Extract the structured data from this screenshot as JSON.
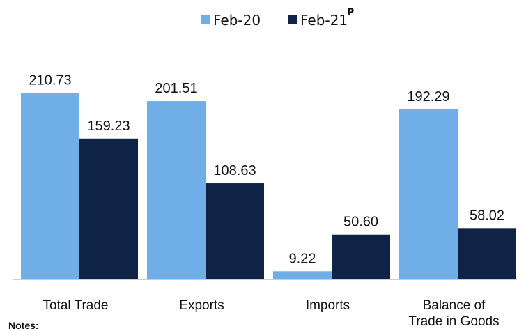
{
  "chart_data": {
    "type": "bar",
    "categories": [
      "Total Trade",
      "Exports",
      "Imports",
      "Balance of Trade in Goods"
    ],
    "category_lines": [
      [
        "Total Trade"
      ],
      [
        "Exports"
      ],
      [
        "Imports"
      ],
      [
        "Balance of",
        "Trade in Goods"
      ]
    ],
    "series": [
      {
        "name": "Feb-20",
        "values": [
          210.73,
          201.51,
          9.22,
          192.29
        ],
        "color": "#6faee6"
      },
      {
        "name": "Feb-21",
        "superscript": "P",
        "values": [
          159.23,
          108.63,
          50.6,
          58.02
        ],
        "color": "#0f2347"
      }
    ],
    "value_labels": [
      [
        "210.73",
        "201.51",
        "9.22",
        "192.29"
      ],
      [
        "159.23",
        "108.63",
        "50.60",
        "58.02"
      ]
    ],
    "legend_position": "top-center",
    "ylim": [
      0,
      240
    ],
    "grid": false,
    "xlabel": "",
    "ylabel": ""
  },
  "notes_label": "Notes:"
}
